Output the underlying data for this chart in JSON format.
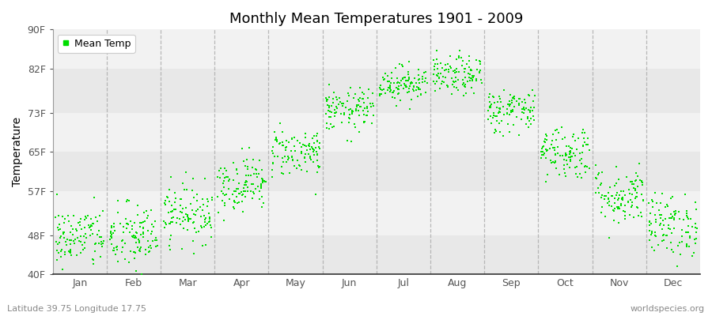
{
  "title": "Monthly Mean Temperatures 1901 - 2009",
  "ylabel": "Temperature",
  "xlabel_bottom_left": "Latitude 39.75 Longitude 17.75",
  "xlabel_bottom_right": "worldspecies.org",
  "ylim": [
    40,
    90
  ],
  "yticks": [
    40,
    48,
    57,
    65,
    73,
    82,
    90
  ],
  "ytick_labels": [
    "40F",
    "48F",
    "57F",
    "65F",
    "73F",
    "82F",
    "90F"
  ],
  "months": [
    "Jan",
    "Feb",
    "Mar",
    "Apr",
    "May",
    "Jun",
    "Jul",
    "Aug",
    "Sep",
    "Oct",
    "Nov",
    "Dec"
  ],
  "dot_color": "#00dd00",
  "dot_size": 3,
  "background_color": "#ffffff",
  "plot_bg_light": "#f2f2f2",
  "plot_bg_dark": "#e8e8e8",
  "grid_line_color": "#aaaaaa",
  "legend_label": "Mean Temp",
  "n_years": 109,
  "monthly_means": [
    47.5,
    47.5,
    52.5,
    58.5,
    65.0,
    73.5,
    79.0,
    80.5,
    73.5,
    65.0,
    56.0,
    50.0
  ],
  "monthly_stds": [
    3.2,
    3.5,
    3.0,
    2.8,
    2.5,
    2.2,
    1.8,
    2.0,
    2.3,
    2.8,
    3.0,
    3.2
  ],
  "seed": 42
}
